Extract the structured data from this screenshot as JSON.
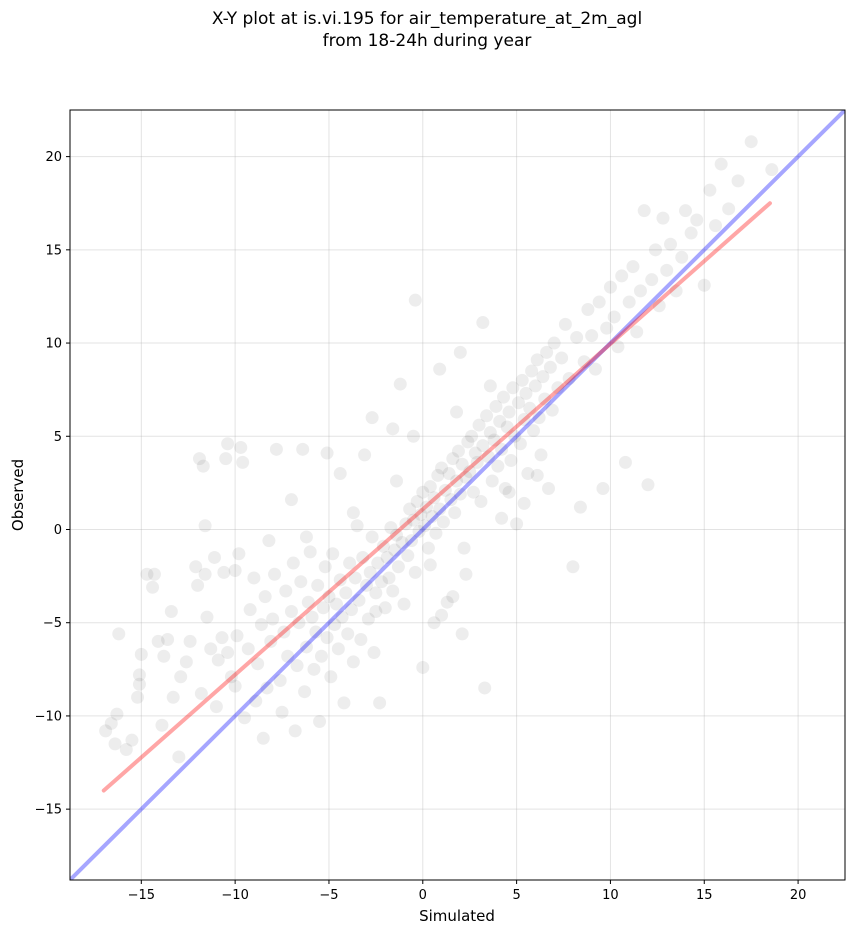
{
  "chart_data": {
    "type": "scatter",
    "title_line1": "X-Y plot at is.vi.195 for air_temperature_at_2m_agl",
    "title_line2": "from 18-24h during year",
    "xlabel": "Simulated",
    "ylabel": "Observed",
    "xlim": [
      -18.8,
      22.5
    ],
    "ylim": [
      -18.8,
      22.5
    ],
    "xticks": [
      -15,
      -10,
      -5,
      0,
      5,
      10,
      15,
      20
    ],
    "yticks": [
      -15,
      -10,
      -5,
      0,
      5,
      10,
      15,
      20
    ],
    "xtick_labels": [
      "−15",
      "−10",
      "−5",
      "0",
      "5",
      "10",
      "15",
      "20"
    ],
    "ytick_labels": [
      "−15",
      "−10",
      "−5",
      "0",
      "5",
      "10",
      "15",
      "20"
    ],
    "grid": true,
    "point_color": "#000000",
    "point_alpha": 0.07,
    "lines": [
      {
        "role": "one-to-one",
        "color": "#0000ff",
        "alpha": 0.35,
        "x": [
          -18.8,
          22.5
        ],
        "y": [
          -18.8,
          22.5
        ]
      },
      {
        "role": "regression-fit",
        "color": "#ff0000",
        "alpha": 0.35,
        "x": [
          -17,
          18.5
        ],
        "y": [
          -14,
          17.5
        ]
      }
    ],
    "points": [
      [
        -16.9,
        -10.8
      ],
      [
        -16.6,
        -10.4
      ],
      [
        -16.4,
        -11.5
      ],
      [
        -16.3,
        -9.9
      ],
      [
        -16.2,
        -5.6
      ],
      [
        -15.8,
        -11.8
      ],
      [
        -15.5,
        -11.3
      ],
      [
        -15.2,
        -9.0
      ],
      [
        -15.1,
        -8.3
      ],
      [
        -15.0,
        -6.7
      ],
      [
        -15.1,
        -7.8
      ],
      [
        -14.7,
        -2.4
      ],
      [
        -14.4,
        -3.1
      ],
      [
        -14.3,
        -2.4
      ],
      [
        -14.1,
        -6.0
      ],
      [
        -13.9,
        -10.5
      ],
      [
        -13.8,
        -6.8
      ],
      [
        -13.6,
        -5.9
      ],
      [
        -13.4,
        -4.4
      ],
      [
        -13.3,
        -9.0
      ],
      [
        -13.0,
        -12.2
      ],
      [
        -12.9,
        -7.9
      ],
      [
        -12.6,
        -7.1
      ],
      [
        -12.4,
        -6.0
      ],
      [
        -12.1,
        -2.0
      ],
      [
        -12.0,
        -3.0
      ],
      [
        -11.9,
        3.8
      ],
      [
        -11.7,
        3.4
      ],
      [
        -11.6,
        -2.4
      ],
      [
        -11.6,
        0.2
      ],
      [
        -11.5,
        -4.7
      ],
      [
        -11.3,
        -6.4
      ],
      [
        -11.1,
        -1.5
      ],
      [
        -11.0,
        -9.5
      ],
      [
        -10.9,
        -7.0
      ],
      [
        -10.7,
        -5.8
      ],
      [
        -10.6,
        -2.3
      ],
      [
        -10.5,
        3.8
      ],
      [
        -10.4,
        4.6
      ],
      [
        -10.2,
        -7.9
      ],
      [
        -10.0,
        -8.4
      ],
      [
        -10.0,
        -2.2
      ],
      [
        -9.9,
        -5.7
      ],
      [
        -9.7,
        4.4
      ],
      [
        -9.6,
        3.6
      ],
      [
        -9.5,
        -10.1
      ],
      [
        -9.3,
        -6.4
      ],
      [
        -9.2,
        -4.3
      ],
      [
        -9.0,
        -2.6
      ],
      [
        -8.9,
        -9.2
      ],
      [
        -8.8,
        -7.2
      ],
      [
        -8.6,
        -5.1
      ],
      [
        -8.5,
        -11.2
      ],
      [
        -8.4,
        -3.6
      ],
      [
        -8.3,
        -8.5
      ],
      [
        -8.1,
        -6.0
      ],
      [
        -8.0,
        -4.8
      ],
      [
        -7.9,
        -2.4
      ],
      [
        -7.8,
        4.3
      ],
      [
        -7.6,
        -8.1
      ],
      [
        -7.5,
        -9.8
      ],
      [
        -7.4,
        -5.5
      ],
      [
        -7.3,
        -3.3
      ],
      [
        -7.2,
        -6.8
      ],
      [
        -7.0,
        -4.4
      ],
      [
        -6.9,
        -1.8
      ],
      [
        -6.8,
        -10.8
      ],
      [
        -6.7,
        -7.3
      ],
      [
        -6.6,
        -5.0
      ],
      [
        -6.5,
        -2.8
      ],
      [
        -6.4,
        4.3
      ],
      [
        -6.3,
        -8.7
      ],
      [
        -6.2,
        -6.3
      ],
      [
        -6.1,
        -3.9
      ],
      [
        -6.0,
        -1.2
      ],
      [
        -5.9,
        -4.7
      ],
      [
        -5.8,
        -7.5
      ],
      [
        -5.7,
        -5.5
      ],
      [
        -5.6,
        -3.0
      ],
      [
        -5.5,
        -10.3
      ],
      [
        -5.4,
        -6.8
      ],
      [
        -5.3,
        -4.2
      ],
      [
        -5.2,
        -2.0
      ],
      [
        -5.1,
        -5.8
      ],
      [
        -5.0,
        -3.6
      ],
      [
        -4.9,
        -7.9
      ],
      [
        -4.8,
        -1.3
      ],
      [
        -4.7,
        -5.1
      ],
      [
        -4.6,
        -4.0
      ],
      [
        -4.5,
        -6.4
      ],
      [
        -4.4,
        -2.7
      ],
      [
        -4.3,
        -4.7
      ],
      [
        -4.2,
        -9.3
      ],
      [
        -4.1,
        -3.4
      ],
      [
        -4.0,
        -5.6
      ],
      [
        -3.9,
        -1.8
      ],
      [
        -3.8,
        -4.3
      ],
      [
        -3.7,
        -7.1
      ],
      [
        -3.6,
        -2.6
      ],
      [
        -3.5,
        0.2
      ],
      [
        -3.4,
        -3.8
      ],
      [
        -3.3,
        -5.9
      ],
      [
        -3.2,
        -1.5
      ],
      [
        -3.1,
        4.0
      ],
      [
        -3.0,
        -3.0
      ],
      [
        -2.9,
        -4.8
      ],
      [
        -2.8,
        -2.3
      ],
      [
        -2.7,
        -0.4
      ],
      [
        -2.6,
        -6.6
      ],
      [
        -2.5,
        -3.4
      ],
      [
        -2.4,
        -1.8
      ],
      [
        -2.3,
        -9.3
      ],
      [
        -2.2,
        -2.8
      ],
      [
        -2.1,
        -0.9
      ],
      [
        -2.0,
        -4.2
      ],
      [
        -1.9,
        -1.5
      ],
      [
        -1.8,
        -2.6
      ],
      [
        -1.7,
        0.1
      ],
      [
        -1.6,
        -3.3
      ],
      [
        -1.5,
        -1.1
      ],
      [
        -1.4,
        -0.3
      ],
      [
        -1.3,
        -2.0
      ],
      [
        -1.2,
        7.8
      ],
      [
        -1.1,
        -0.7
      ],
      [
        -1.0,
        -4.0
      ],
      [
        -0.9,
        0.3
      ],
      [
        -0.8,
        -1.4
      ],
      [
        -0.7,
        1.1
      ],
      [
        -0.6,
        -0.6
      ],
      [
        -0.5,
        0.5
      ],
      [
        -0.4,
        -2.3
      ],
      [
        -0.3,
        1.5
      ],
      [
        -0.2,
        -0.1
      ],
      [
        -0.1,
        0.8
      ],
      [
        0.0,
        -7.4
      ],
      [
        0.0,
        2.0
      ],
      [
        0.1,
        0.2
      ],
      [
        0.2,
        1.2
      ],
      [
        0.3,
        -1.0
      ],
      [
        0.4,
        2.3
      ],
      [
        0.5,
        0.7
      ],
      [
        0.6,
        1.7
      ],
      [
        0.7,
        -0.2
      ],
      [
        0.8,
        2.9
      ],
      [
        0.9,
        1.1
      ],
      [
        1.0,
        3.3
      ],
      [
        1.1,
        0.4
      ],
      [
        1.2,
        2.1
      ],
      [
        1.3,
        -3.9
      ],
      [
        1.4,
        3.0
      ],
      [
        1.5,
        1.6
      ],
      [
        1.6,
        3.8
      ],
      [
        1.7,
        0.9
      ],
      [
        1.8,
        2.6
      ],
      [
        1.9,
        4.2
      ],
      [
        2.0,
        1.9
      ],
      [
        2.1,
        3.5
      ],
      [
        2.2,
        -1.0
      ],
      [
        2.3,
        2.8
      ],
      [
        2.4,
        4.7
      ],
      [
        2.5,
        3.1
      ],
      [
        2.6,
        5.0
      ],
      [
        2.7,
        2.0
      ],
      [
        2.8,
        4.1
      ],
      [
        2.9,
        3.6
      ],
      [
        3.0,
        5.6
      ],
      [
        3.1,
        1.5
      ],
      [
        3.2,
        4.5
      ],
      [
        3.3,
        -8.5
      ],
      [
        3.4,
        6.1
      ],
      [
        3.5,
        3.9
      ],
      [
        3.6,
        5.2
      ],
      [
        3.7,
        2.6
      ],
      [
        3.8,
        4.8
      ],
      [
        3.9,
        6.6
      ],
      [
        4.0,
        3.4
      ],
      [
        4.1,
        5.8
      ],
      [
        4.2,
        4.3
      ],
      [
        4.3,
        7.1
      ],
      [
        4.4,
        2.2
      ],
      [
        4.5,
        5.5
      ],
      [
        4.6,
        6.3
      ],
      [
        4.7,
        3.7
      ],
      [
        4.8,
        7.6
      ],
      [
        4.9,
        5.0
      ],
      [
        5.0,
        0.3
      ],
      [
        5.1,
        6.8
      ],
      [
        5.2,
        4.6
      ],
      [
        5.3,
        8.0
      ],
      [
        5.4,
        5.9
      ],
      [
        5.5,
        7.3
      ],
      [
        5.6,
        3.0
      ],
      [
        5.7,
        6.5
      ],
      [
        5.8,
        8.5
      ],
      [
        5.9,
        5.3
      ],
      [
        6.0,
        7.7
      ],
      [
        6.1,
        9.1
      ],
      [
        6.2,
        6.0
      ],
      [
        6.3,
        4.0
      ],
      [
        6.4,
        8.2
      ],
      [
        6.5,
        7.0
      ],
      [
        6.6,
        9.5
      ],
      [
        6.7,
        2.2
      ],
      [
        6.8,
        8.7
      ],
      [
        6.9,
        6.4
      ],
      [
        7.0,
        10.0
      ],
      [
        7.2,
        7.6
      ],
      [
        7.4,
        9.2
      ],
      [
        7.6,
        11.0
      ],
      [
        7.8,
        8.1
      ],
      [
        8.0,
        -2.0
      ],
      [
        8.2,
        10.3
      ],
      [
        8.4,
        1.2
      ],
      [
        8.6,
        9.0
      ],
      [
        8.8,
        11.8
      ],
      [
        9.0,
        10.4
      ],
      [
        9.2,
        8.6
      ],
      [
        9.4,
        12.2
      ],
      [
        9.6,
        2.2
      ],
      [
        9.8,
        10.8
      ],
      [
        10.0,
        13.0
      ],
      [
        10.2,
        11.4
      ],
      [
        10.4,
        9.8
      ],
      [
        10.6,
        13.6
      ],
      [
        10.8,
        3.6
      ],
      [
        11.0,
        12.2
      ],
      [
        11.2,
        14.1
      ],
      [
        11.4,
        10.6
      ],
      [
        11.6,
        12.8
      ],
      [
        11.8,
        17.1
      ],
      [
        12.0,
        2.4
      ],
      [
        12.2,
        13.4
      ],
      [
        12.4,
        15.0
      ],
      [
        12.6,
        12.0
      ],
      [
        12.8,
        16.7
      ],
      [
        13.0,
        13.9
      ],
      [
        13.2,
        15.3
      ],
      [
        13.5,
        12.8
      ],
      [
        13.8,
        14.6
      ],
      [
        14.0,
        17.1
      ],
      [
        14.3,
        15.9
      ],
      [
        14.6,
        16.6
      ],
      [
        15.0,
        13.1
      ],
      [
        15.3,
        18.2
      ],
      [
        15.6,
        16.3
      ],
      [
        15.9,
        19.6
      ],
      [
        16.3,
        17.2
      ],
      [
        16.8,
        18.7
      ],
      [
        17.5,
        20.8
      ],
      [
        18.6,
        19.3
      ],
      [
        -2.5,
        -4.4
      ],
      [
        -1.4,
        2.6
      ],
      [
        0.6,
        -5.0
      ],
      [
        1.8,
        6.3
      ],
      [
        3.6,
        7.7
      ],
      [
        -0.5,
        5.0
      ],
      [
        2.3,
        -2.4
      ],
      [
        4.2,
        0.6
      ],
      [
        -3.7,
        0.9
      ],
      [
        -6.2,
        -0.4
      ],
      [
        0.9,
        8.6
      ],
      [
        2.0,
        9.5
      ],
      [
        3.2,
        11.1
      ],
      [
        -0.4,
        12.3
      ],
      [
        1.0,
        -4.6
      ],
      [
        2.1,
        -5.6
      ],
      [
        1.6,
        -3.6
      ],
      [
        4.6,
        2.0
      ],
      [
        5.4,
        1.4
      ],
      [
        6.1,
        2.9
      ],
      [
        0.4,
        -1.9
      ],
      [
        -1.6,
        5.4
      ],
      [
        -2.7,
        6.0
      ],
      [
        -4.4,
        3.0
      ],
      [
        -5.1,
        4.1
      ],
      [
        -7.0,
        1.6
      ],
      [
        -8.2,
        -0.6
      ],
      [
        -9.8,
        -1.3
      ],
      [
        -10.4,
        -6.6
      ],
      [
        -11.8,
        -8.8
      ]
    ]
  }
}
